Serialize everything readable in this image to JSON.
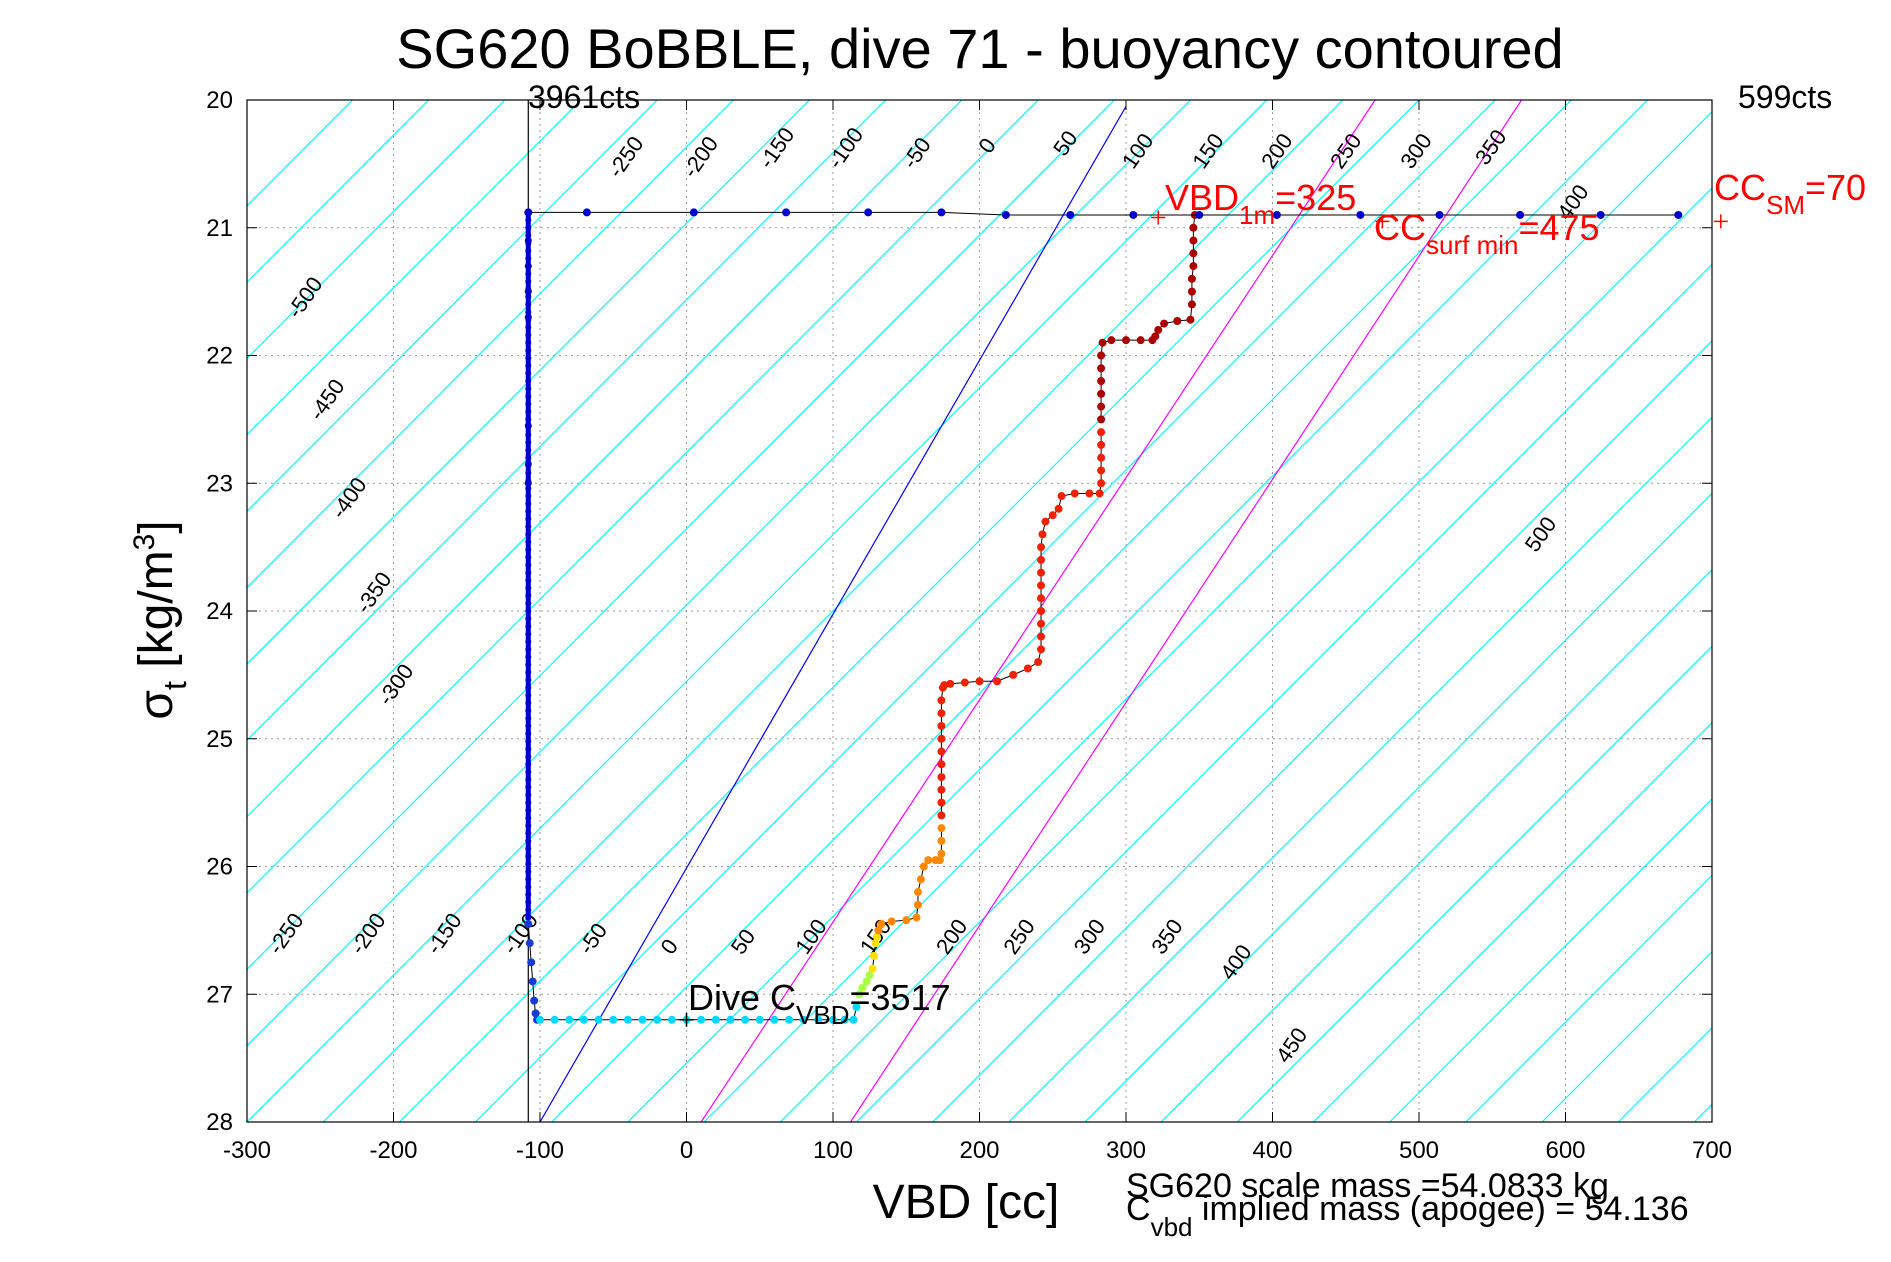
{
  "chart_data": {
    "type": "scatter",
    "title": "SG620 BoBBLE, dive 71 - buoyancy contoured",
    "xlabel": "VBD [cc]",
    "ylabel": {
      "main": "σ",
      "sub": "t",
      "unit": " [kg/m",
      "sup": "3",
      "close": "]"
    },
    "xlim": [
      -300,
      700
    ],
    "ylim": [
      28,
      20
    ],
    "y_reversed": true,
    "grid": true,
    "x_ticks": [
      "-300",
      "-200",
      "-100",
      "0",
      "100",
      "200",
      "300",
      "400",
      "500",
      "600",
      "700"
    ],
    "y_ticks": [
      "20",
      "21",
      "22",
      "23",
      "24",
      "25",
      "26",
      "27",
      "28"
    ],
    "top_labels": {
      "left": "3961cts",
      "right": "599cts"
    },
    "annotations": {
      "vbd1m": {
        "main": "VBD",
        "sub": "1m",
        "rest": "=325",
        "color": "#ff0000"
      },
      "ccsurf": {
        "main": "CC",
        "sub": "surf min",
        "rest": "=475",
        "color": "#ff0000"
      },
      "ccsm": {
        "main": "CC",
        "sub": "SM",
        "rest": "=70",
        "color": "#ff0000"
      },
      "divec": {
        "main": "Dive C",
        "sub": "VBD",
        "rest": "=3517"
      },
      "scale_mass": "SG620 scale mass =54.0833 kg",
      "implied": {
        "main": "C",
        "sub": "vbd",
        "rest": " implied mass (apogee) = 54.136"
      }
    },
    "reference_lines": {
      "zero_buoyancy_color": "#0000ff",
      "limit_color": "#ff00ff",
      "contour_color": "#00ffff"
    },
    "contour_labels": [
      {
        "text": "-500",
        "x": -265,
        "y": 21.72
      },
      {
        "text": "-450",
        "x": -250,
        "y": 22.52
      },
      {
        "text": "-400",
        "x": -235,
        "y": 23.29
      },
      {
        "text": "-350",
        "x": -218,
        "y": 24.03
      },
      {
        "text": "-300",
        "x": -203,
        "y": 24.75
      },
      {
        "text": "-250",
        "x": -278,
        "y": 26.7
      },
      {
        "text": "-200",
        "x": -222,
        "y": 26.7
      },
      {
        "text": "-150",
        "x": -170,
        "y": 26.7
      },
      {
        "text": "-100",
        "x": -118,
        "y": 26.7
      },
      {
        "text": "-50",
        "x": -66,
        "y": 26.7
      },
      {
        "text": "0",
        "x": -10,
        "y": 26.7
      },
      {
        "text": "50",
        "x": 38,
        "y": 26.7
      },
      {
        "text": "100",
        "x": 82,
        "y": 26.7
      },
      {
        "text": "150",
        "x": 126,
        "y": 26.7
      },
      {
        "text": "200",
        "x": 178,
        "y": 26.7
      },
      {
        "text": "250",
        "x": 224,
        "y": 26.7
      },
      {
        "text": "300",
        "x": 272,
        "y": 26.7
      },
      {
        "text": "350",
        "x": 325,
        "y": 26.7
      },
      {
        "text": "400",
        "x": 372,
        "y": 26.9
      },
      {
        "text": "450",
        "x": 410,
        "y": 27.55
      },
      {
        "text": "500",
        "x": 580,
        "y": 23.55
      },
      {
        "text": "-250",
        "x": -46,
        "y": 20.62
      },
      {
        "text": "-200",
        "x": 5,
        "y": 20.62
      },
      {
        "text": "-150",
        "x": 57,
        "y": 20.55
      },
      {
        "text": "-100",
        "x": 104,
        "y": 20.55
      },
      {
        "text": "-50",
        "x": 155,
        "y": 20.55
      },
      {
        "text": "0",
        "x": 207,
        "y": 20.43
      },
      {
        "text": "50",
        "x": 258,
        "y": 20.45
      },
      {
        "text": "100",
        "x": 305,
        "y": 20.55
      },
      {
        "text": "150",
        "x": 353,
        "y": 20.55
      },
      {
        "text": "200",
        "x": 400,
        "y": 20.55
      },
      {
        "text": "250",
        "x": 447,
        "y": 20.55
      },
      {
        "text": "300",
        "x": 495,
        "y": 20.55
      },
      {
        "text": "350",
        "x": 546,
        "y": 20.52
      },
      {
        "text": "400",
        "x": 602,
        "y": 20.95
      }
    ],
    "series": [
      {
        "color": "#0000cc",
        "mode": "dive_column",
        "x": -108,
        "y_range": [
          20.88,
          26.4
        ],
        "points": [
          [
            -108,
            20.88
          ],
          [
            -108,
            21.1
          ],
          [
            -108,
            21.3
          ],
          [
            -108,
            21.5
          ],
          [
            -108,
            21.7
          ],
          [
            -108,
            22.55
          ],
          [
            -108,
            22.85
          ],
          [
            -108,
            23.0
          ]
        ]
      },
      {
        "color": "#1a3ad8",
        "mode": "points",
        "points": [
          [
            -108,
            26.45
          ],
          [
            -107,
            26.6
          ],
          [
            -106,
            26.75
          ],
          [
            -105,
            26.9
          ],
          [
            -104,
            27.05
          ],
          [
            -103,
            27.15
          ],
          [
            -102,
            27.2
          ]
        ]
      },
      {
        "color": "#00d8ff",
        "mode": "points",
        "points": [
          [
            -100,
            27.2
          ],
          [
            -90,
            27.2
          ],
          [
            -80,
            27.2
          ],
          [
            -70,
            27.2
          ],
          [
            -60,
            27.2
          ],
          [
            -50,
            27.2
          ],
          [
            -40,
            27.2
          ],
          [
            -30,
            27.2
          ],
          [
            -20,
            27.2
          ],
          [
            -10,
            27.2
          ],
          [
            0,
            27.2
          ],
          [
            10,
            27.2
          ],
          [
            20,
            27.2
          ],
          [
            30,
            27.2
          ],
          [
            40,
            27.2
          ],
          [
            50,
            27.2
          ],
          [
            60,
            27.2
          ],
          [
            70,
            27.2
          ],
          [
            80,
            27.2
          ],
          [
            90,
            27.2
          ],
          [
            100,
            27.2
          ],
          [
            108,
            27.2
          ],
          [
            114,
            27.2
          ],
          [
            116,
            27.1
          ]
        ]
      },
      {
        "color": "#aaff44",
        "mode": "points",
        "points": [
          [
            118,
            27.0
          ],
          [
            120,
            26.95
          ],
          [
            123,
            26.9
          ],
          [
            125,
            26.85
          ]
        ]
      },
      {
        "color": "#ffe000",
        "mode": "points",
        "points": [
          [
            127,
            26.8
          ],
          [
            128,
            26.7
          ],
          [
            129,
            26.6
          ],
          [
            130,
            26.55
          ]
        ]
      },
      {
        "color": "#ff8800",
        "mode": "points",
        "points": [
          [
            131,
            26.5
          ],
          [
            133,
            26.45
          ],
          [
            140,
            26.43
          ],
          [
            150,
            26.42
          ],
          [
            157,
            26.4
          ],
          [
            158,
            26.3
          ],
          [
            158,
            26.2
          ],
          [
            160,
            26.1
          ],
          [
            162,
            26.0
          ],
          [
            165,
            25.95
          ],
          [
            170,
            25.95
          ],
          [
            173,
            25.95
          ],
          [
            174,
            25.9
          ],
          [
            174,
            25.8
          ],
          [
            174,
            25.7
          ]
        ]
      },
      {
        "color": "#ee2200",
        "mode": "points",
        "points": [
          [
            174,
            25.6
          ],
          [
            174,
            25.5
          ],
          [
            174,
            25.4
          ],
          [
            174,
            25.3
          ],
          [
            174,
            25.2
          ],
          [
            174,
            25.1
          ],
          [
            174,
            25.0
          ],
          [
            174,
            24.9
          ],
          [
            174,
            24.8
          ],
          [
            174,
            24.7
          ],
          [
            175,
            24.6
          ],
          [
            176,
            24.58
          ],
          [
            180,
            24.57
          ],
          [
            190,
            24.56
          ],
          [
            200,
            24.55
          ],
          [
            212,
            24.55
          ],
          [
            223,
            24.5
          ],
          [
            233,
            24.45
          ],
          [
            240,
            24.4
          ],
          [
            242,
            24.3
          ],
          [
            242,
            24.2
          ],
          [
            242,
            24.1
          ],
          [
            242,
            24.0
          ],
          [
            242,
            23.9
          ],
          [
            242,
            23.8
          ],
          [
            242,
            23.7
          ],
          [
            242,
            23.6
          ],
          [
            242,
            23.5
          ],
          [
            243,
            23.4
          ],
          [
            245,
            23.3
          ],
          [
            250,
            23.25
          ],
          [
            254,
            23.2
          ],
          [
            256,
            23.1
          ],
          [
            265,
            23.08
          ],
          [
            275,
            23.08
          ],
          [
            282,
            23.08
          ],
          [
            283,
            23.0
          ],
          [
            283,
            22.9
          ],
          [
            283,
            22.8
          ],
          [
            283,
            22.7
          ],
          [
            283,
            22.6
          ]
        ]
      },
      {
        "color": "#aa0000",
        "mode": "points",
        "points": [
          [
            283,
            22.5
          ],
          [
            283,
            22.4
          ],
          [
            283,
            22.3
          ],
          [
            283,
            22.2
          ],
          [
            283,
            22.1
          ],
          [
            283,
            22.0
          ],
          [
            284,
            21.9
          ],
          [
            290,
            21.88
          ],
          [
            300,
            21.88
          ],
          [
            310,
            21.88
          ],
          [
            318,
            21.88
          ],
          [
            320,
            21.85
          ],
          [
            322,
            21.8
          ],
          [
            326,
            21.75
          ],
          [
            335,
            21.73
          ],
          [
            344,
            21.72
          ],
          [
            345,
            21.6
          ],
          [
            345,
            21.5
          ],
          [
            345,
            21.4
          ],
          [
            346,
            21.3
          ],
          [
            346,
            21.2
          ],
          [
            346,
            21.1
          ],
          [
            346,
            21.0
          ],
          [
            347,
            20.9
          ]
        ]
      },
      {
        "color": "#0000cc",
        "mode": "surface",
        "points": [
          [
            -108,
            20.88
          ],
          [
            -68,
            20.88
          ],
          [
            5,
            20.88
          ],
          [
            68,
            20.88
          ],
          [
            124,
            20.88
          ],
          [
            174,
            20.88
          ],
          [
            218,
            20.9
          ],
          [
            262,
            20.9
          ],
          [
            305,
            20.9
          ],
          [
            350,
            20.9
          ],
          [
            403,
            20.9
          ],
          [
            460,
            20.9
          ],
          [
            514,
            20.9
          ],
          [
            569,
            20.9
          ],
          [
            624,
            20.9
          ],
          [
            677,
            20.9
          ]
        ]
      }
    ]
  }
}
